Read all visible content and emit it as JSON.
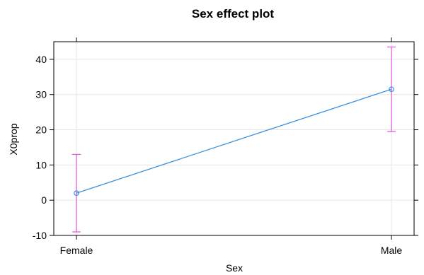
{
  "chart_data": {
    "type": "line",
    "title": "Sex effect plot",
    "xlabel": "Sex",
    "ylabel": "X0prop",
    "categories": [
      "Female",
      "Male"
    ],
    "series": [
      {
        "values": [
          2,
          31.5
        ],
        "lower": [
          -9,
          19.5
        ],
        "upper": [
          13,
          43.5
        ]
      }
    ],
    "ylim": [
      -10,
      45
    ],
    "yticks": [
      -10,
      0,
      10,
      20,
      30,
      40
    ],
    "grid": true,
    "legend": "none",
    "colors": {
      "line": "#3a8fde",
      "errorbar": "#e05ee0",
      "grid": "#e6e6e6",
      "frame": "#000000"
    }
  }
}
